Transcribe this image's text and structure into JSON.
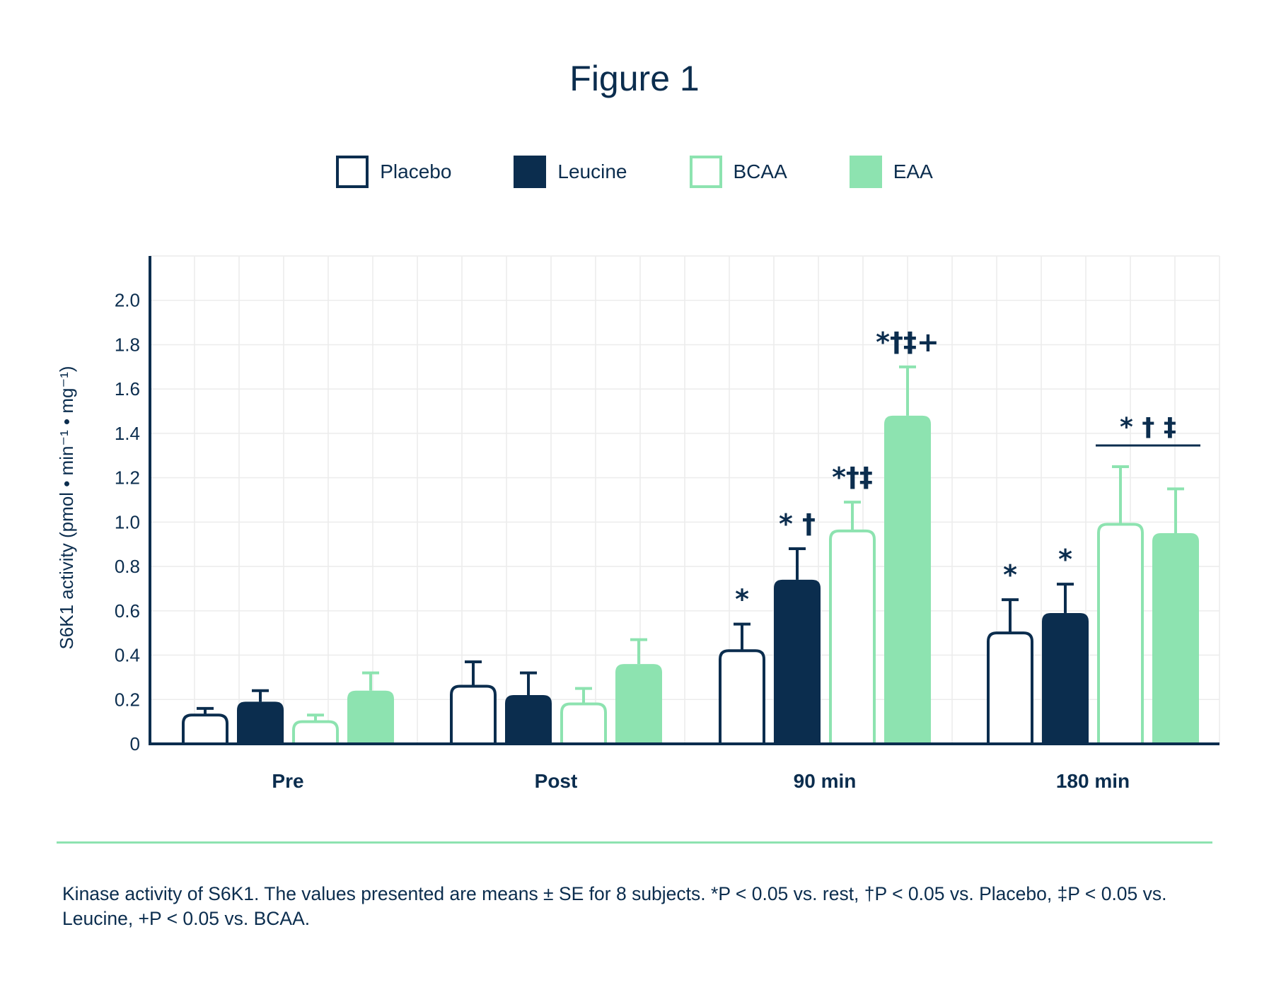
{
  "title": "Figure 1",
  "caption": "Kinase activity of S6K1. The values presented are means ± SE for 8 subjects. *P < 0.05 vs. rest, †P < 0.05 vs. Placebo, ‡P < 0.05 vs. Leucine, +P < 0.05 vs. BCAA.",
  "colors": {
    "navy": "#0b2d4e",
    "mint": "#8de3b0",
    "grid": "#ececec",
    "divider": "#8de3b0"
  },
  "legend": [
    {
      "label": "Placebo",
      "style": "outline",
      "color": "#0b2d4e"
    },
    {
      "label": "Leucine",
      "style": "filled",
      "color": "#0b2d4e"
    },
    {
      "label": "BCAA",
      "style": "outline",
      "color": "#8de3b0"
    },
    {
      "label": "EAA",
      "style": "filled",
      "color": "#8de3b0"
    }
  ],
  "chart_data": {
    "type": "bar",
    "title": "Figure 1",
    "ylabel": "S6K1 activity (pmol • min⁻¹ • mg⁻¹)",
    "xlabel": "",
    "ylim": [
      0,
      2.2
    ],
    "yticks": [
      "0",
      "0.2",
      "0.4",
      "0.6",
      "0.8",
      "1.0",
      "1.2",
      "1.4",
      "1.6",
      "1.8",
      "2.0"
    ],
    "grid": true,
    "legend_position": "top",
    "categories": [
      "Pre",
      "Post",
      "90 min",
      "180 min"
    ],
    "series": [
      {
        "name": "Placebo",
        "style": "outline",
        "color": "#0b2d4e",
        "values": [
          0.13,
          0.26,
          0.42,
          0.5
        ],
        "errors": [
          0.03,
          0.11,
          0.12,
          0.15
        ],
        "annotations": [
          "",
          "",
          "*",
          "*"
        ]
      },
      {
        "name": "Leucine",
        "style": "filled",
        "color": "#0b2d4e",
        "values": [
          0.19,
          0.22,
          0.74,
          0.59
        ],
        "errors": [
          0.05,
          0.1,
          0.14,
          0.13
        ],
        "annotations": [
          "",
          "",
          "* †",
          "*"
        ]
      },
      {
        "name": "BCAA",
        "style": "outline",
        "color": "#8de3b0",
        "values": [
          0.1,
          0.18,
          0.96,
          0.99
        ],
        "errors": [
          0.03,
          0.07,
          0.13,
          0.26
        ],
        "annotations": [
          "",
          "",
          "*†‡",
          ""
        ]
      },
      {
        "name": "EAA",
        "style": "filled",
        "color": "#8de3b0",
        "values": [
          0.24,
          0.36,
          1.48,
          0.95
        ],
        "errors": [
          0.08,
          0.11,
          0.22,
          0.2
        ],
        "annotations": [
          "",
          "",
          "*†‡+",
          ""
        ]
      }
    ],
    "group_annotations": [
      {
        "category": "180 min",
        "series_span": [
          "BCAA",
          "EAA"
        ],
        "text": "*  †  ‡"
      }
    ]
  }
}
